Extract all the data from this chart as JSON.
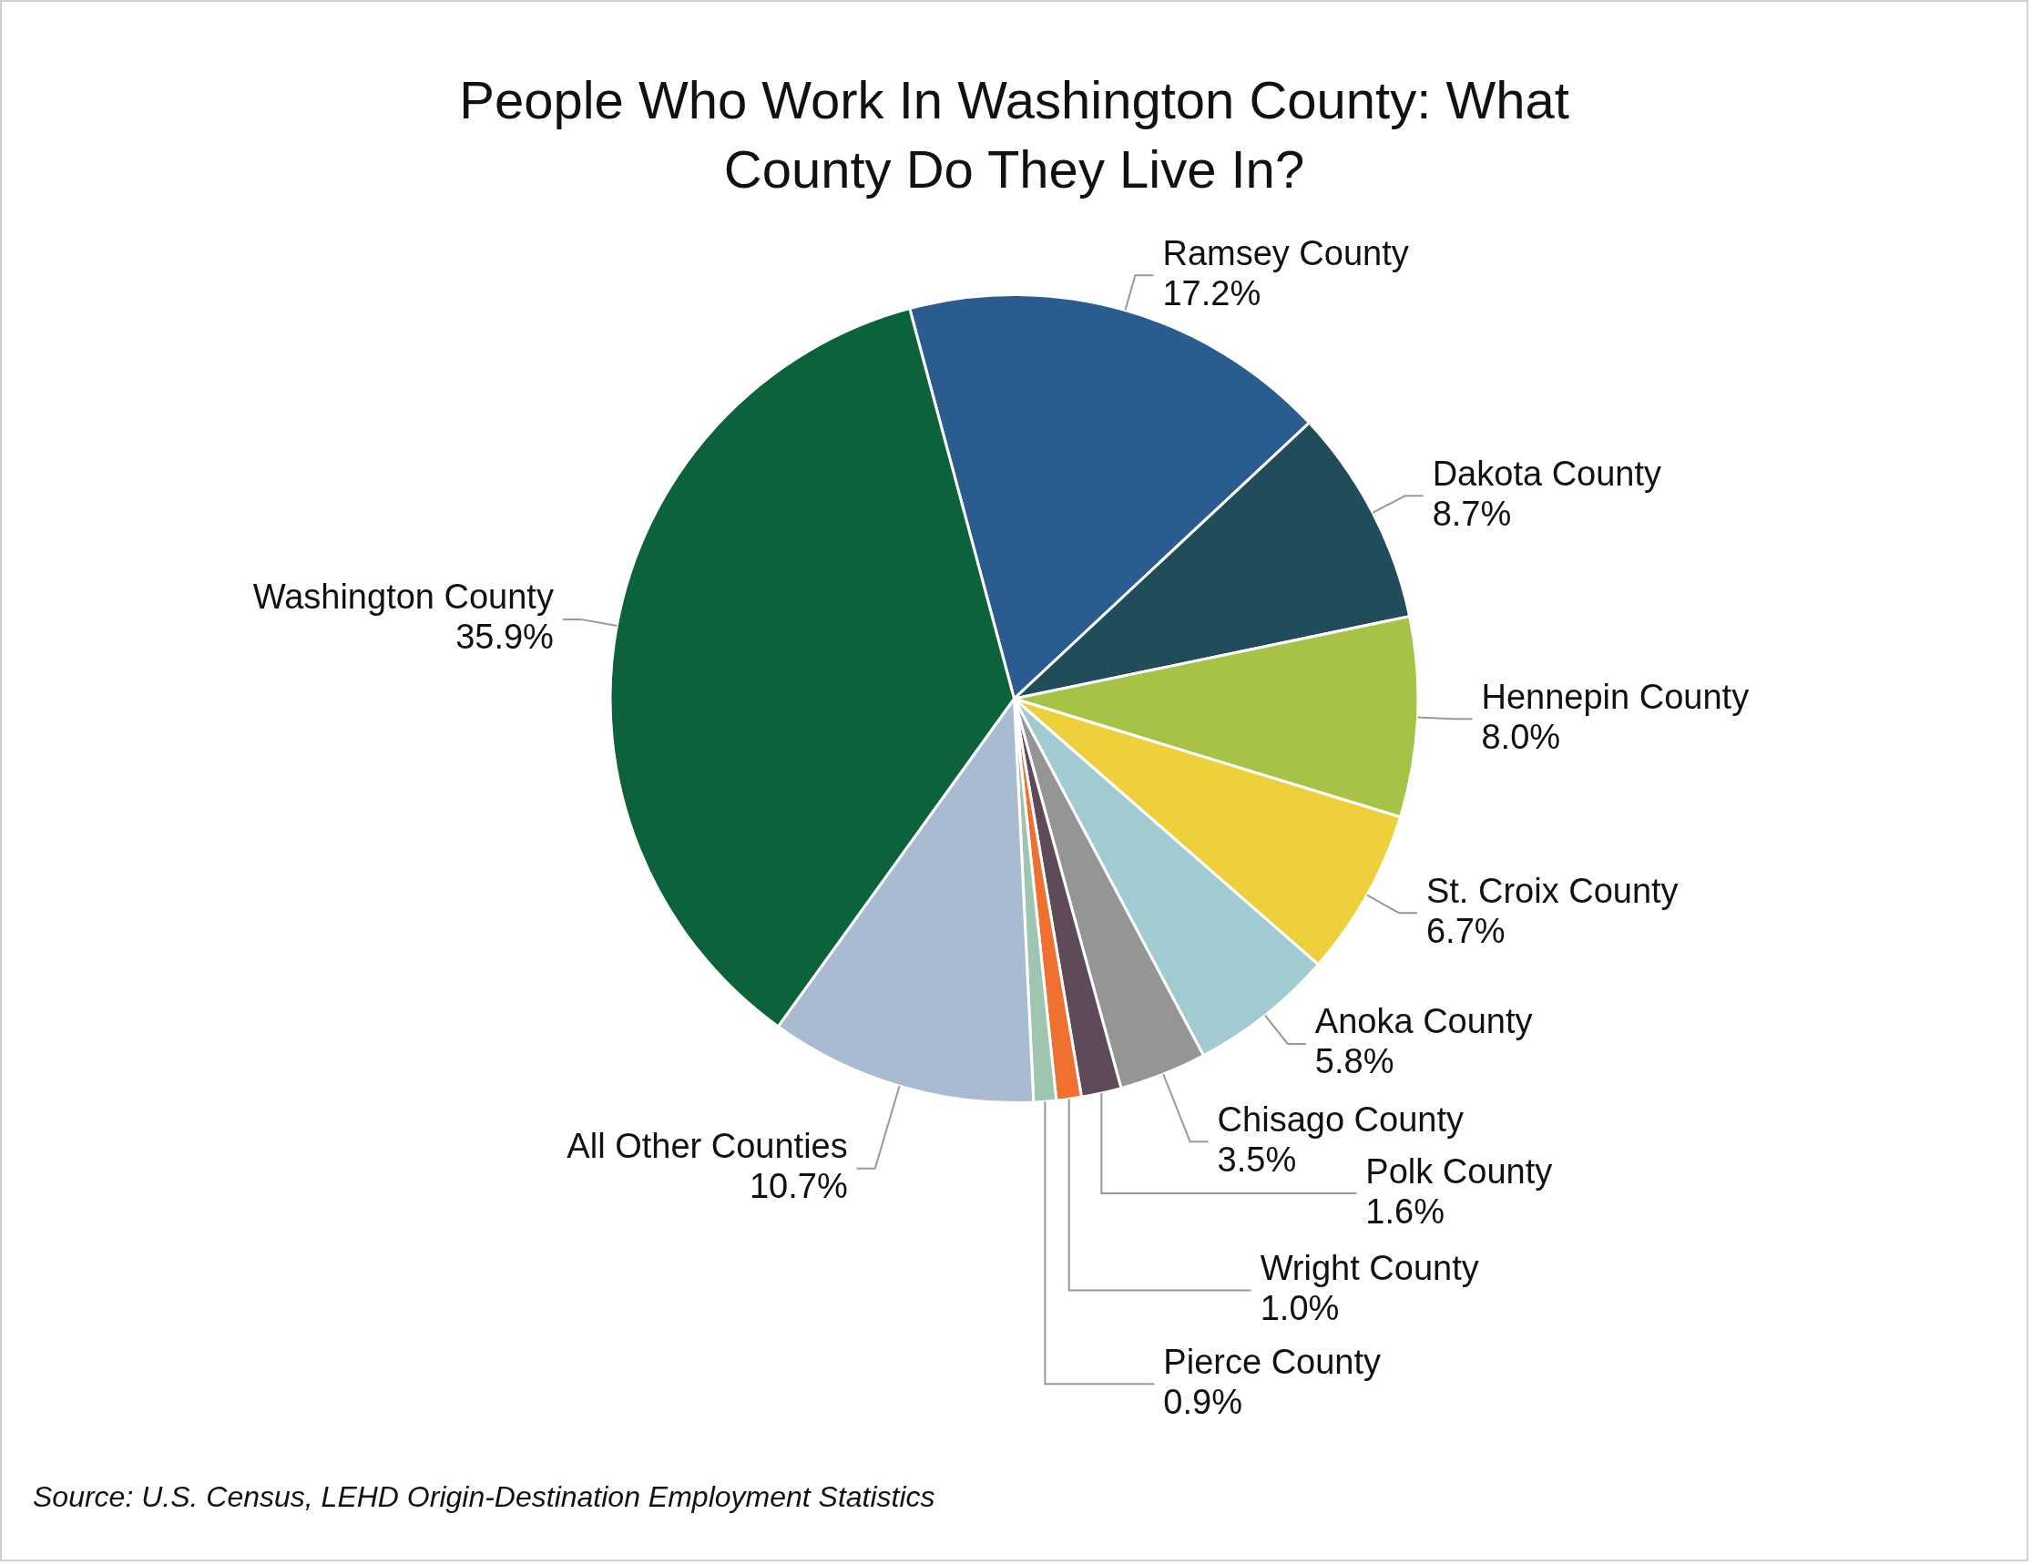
{
  "chart_data": {
    "type": "pie",
    "title": "People Who Work In Washington County: What County Do They Live In?",
    "categories": [
      "Ramsey County",
      "Dakota County",
      "Hennepin County",
      "St. Croix County",
      "Anoka County",
      "Chisago County",
      "Polk County",
      "Wright County",
      "Pierce County",
      "All Other Counties",
      "Washington County"
    ],
    "values": [
      17.2,
      8.7,
      8.0,
      6.7,
      5.8,
      3.5,
      1.6,
      1.0,
      0.9,
      10.7,
      35.9
    ],
    "colors": [
      "#2b5c8f",
      "#214d5a",
      "#a7c346",
      "#eed03d",
      "#9fcbd1",
      "#959595",
      "#5f4a5a",
      "#f07030",
      "#9fc5b0",
      "#a9bbd1",
      "#0c623a"
    ],
    "value_labels": [
      "17.2%",
      "8.7%",
      "8.0%",
      "6.7%",
      "5.8%",
      "3.5%",
      "1.6%",
      "1.0%",
      "0.9%",
      "10.7%",
      "35.9%"
    ],
    "legend": false,
    "annotations": [
      "Source: U.S. Census, LEHD Origin-Destination Employment Statistics"
    ]
  }
}
